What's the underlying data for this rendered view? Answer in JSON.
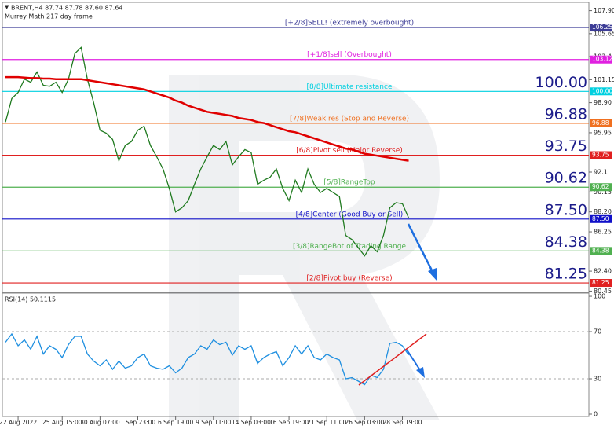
{
  "chart_data": [
    {
      "type": "line",
      "title": "BRENT,H4  87.74 87.78 87.60 87.64",
      "subtitle": "Murrey Math 217 day frame",
      "xlim": [
        -0.5,
        92.6
      ],
      "ylim": [
        80.33,
        108.33
      ],
      "yticks": [
        {
          "value": 107.9,
          "label": "107.90"
        },
        105.65,
        103.4,
        101.15,
        {
          "value": 98.9,
          "label": "98.90"
        },
        95.95,
        92.1,
        90.15,
        {
          "value": 88.2,
          "label": "88.20"
        },
        86.25,
        {
          "value": 82.4,
          "label": "82.40"
        },
        80.45
      ],
      "series": [
        {
          "color": "#1f7a1f",
          "values": [
            97.0,
            99.3,
            99.9,
            101.2,
            100.9,
            101.9,
            100.6,
            100.5,
            100.9,
            99.9,
            101.2,
            103.7,
            104.3,
            101.2,
            98.9,
            96.2,
            95.9,
            95.3,
            93.2,
            94.7,
            95.1,
            96.2,
            96.6,
            94.7,
            93.6,
            92.4,
            90.5,
            88.2,
            88.6,
            89.3,
            90.9,
            92.4,
            93.6,
            94.7,
            94.3,
            95.1,
            92.8,
            93.6,
            94.3,
            94.0,
            90.9,
            91.3,
            91.6,
            92.4,
            90.5,
            89.3,
            91.3,
            90.1,
            92.4,
            90.9,
            90.1,
            90.5,
            90.1,
            89.7,
            85.9,
            85.5,
            84.7,
            83.9,
            84.9,
            84.3,
            85.9,
            88.6,
            89.1,
            89.0,
            87.6
          ]
        },
        {
          "color": "#e00000",
          "values": [
            101.4,
            101.4,
            101.4,
            101.35,
            101.3,
            101.3,
            101.25,
            101.25,
            101.2,
            101.2,
            101.2,
            101.2,
            101.2,
            101.1,
            101.0,
            100.9,
            100.8,
            100.7,
            100.6,
            100.5,
            100.4,
            100.3,
            100.2,
            100.0,
            99.8,
            99.6,
            99.4,
            99.1,
            98.9,
            98.6,
            98.4,
            98.2,
            98.0,
            97.9,
            97.8,
            97.7,
            97.6,
            97.4,
            97.3,
            97.2,
            97.0,
            96.9,
            96.7,
            96.5,
            96.3,
            96.1,
            96.0,
            95.8,
            95.6,
            95.4,
            95.2,
            95.0,
            94.8,
            94.6,
            94.4,
            94.3,
            94.1,
            93.9,
            93.8,
            93.7,
            93.6,
            93.5,
            93.4,
            93.3,
            93.2
          ]
        }
      ],
      "levels": [
        {
          "value": 106.25,
          "label": "106.25",
          "text": "[+2/8]SELL! (extremely overbought)",
          "color": "#3c3c96"
        },
        {
          "value": 103.12,
          "label": "103.12",
          "text": "[+1/8]sell (Overbought)",
          "color": "#e020e0"
        },
        {
          "value": 100.0,
          "label": "100.00",
          "text": "[8/8]Ultimate resistance",
          "color": "#00d0e0"
        },
        {
          "value": 96.88,
          "label": "96.88",
          "text": "[7/8]Weak res (Stop and Reverse)",
          "color": "#f07020"
        },
        {
          "value": 93.75,
          "label": "93.75",
          "text": "[6/8]Pivot sell (Major Reverse)",
          "color": "#e02020"
        },
        {
          "value": 90.62,
          "label": "90.62",
          "text": "[5/8]RangeTop",
          "color": "#50b050"
        },
        {
          "value": 87.5,
          "label": "87.50",
          "text": "[4/8]Center (Good Buy or Sell)",
          "color": "#1010c8"
        },
        {
          "value": 84.38,
          "label": "84.38",
          "text": "[3/8]RangeBot of Trading Range",
          "color": "#50b050"
        },
        {
          "value": 81.25,
          "label": "81.25",
          "text": "[2/8]Pivot buy (Reverse)",
          "color": "#e02020"
        }
      ],
      "large_labels": [
        {
          "value": 100.0,
          "label": "100.00"
        },
        {
          "value": 96.88,
          "label": "96.88"
        },
        {
          "value": 93.75,
          "label": "93.75"
        },
        {
          "value": 90.62,
          "label": "90.62"
        },
        {
          "value": 87.5,
          "label": "87.50"
        },
        {
          "value": 84.38,
          "label": "84.38"
        },
        {
          "value": 81.25,
          "label": "81.25"
        }
      ]
    },
    {
      "type": "line",
      "title": "RSI(14) 50.1115",
      "xlim": [
        -0.5,
        92.6
      ],
      "ylim": [
        -2,
        102.7
      ],
      "yticks": [
        100,
        70,
        30,
        0
      ],
      "hlines": [
        70,
        30
      ],
      "series": [
        {
          "color": "#1e8fe0",
          "values": [
            61,
            68,
            58,
            63,
            55,
            66,
            51,
            58,
            55,
            48,
            59,
            66,
            66,
            51,
            45,
            41,
            46,
            38,
            45,
            39,
            41,
            48,
            51,
            41,
            39,
            38,
            41,
            35,
            39,
            48,
            51,
            58,
            55,
            63,
            59,
            61,
            50,
            58,
            55,
            58,
            43,
            48,
            51,
            53,
            41,
            48,
            58,
            51,
            58,
            48,
            46,
            51,
            48,
            46,
            30,
            31,
            28,
            25,
            33,
            31,
            38,
            60,
            61,
            58,
            50.1
          ]
        }
      ],
      "xticks": [
        {
          "value": 2,
          "label": "22 Aug 2022"
        },
        {
          "value": 9,
          "label": "25 Aug 15:00"
        },
        {
          "value": 15,
          "label": "30 Aug 07:00"
        },
        {
          "value": 21,
          "label": "1 Sep 23:00"
        },
        {
          "value": 27,
          "label": "6 Sep 19:00"
        },
        {
          "value": 33,
          "label": "9 Sep 11:00"
        },
        {
          "value": 39,
          "label": "14 Sep 03:00"
        },
        {
          "value": 45,
          "label": "16 Sep 19:00"
        },
        {
          "value": 51,
          "label": "21 Sep 11:00"
        },
        {
          "value": 57,
          "label": "26 Sep 03:00"
        },
        {
          "value": 63,
          "label": "28 Sep 19:00"
        }
      ]
    }
  ]
}
